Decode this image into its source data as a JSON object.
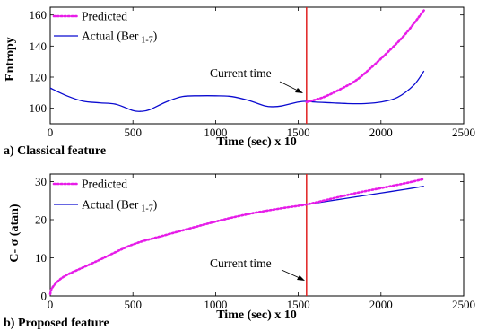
{
  "chart_data": [
    {
      "type": "line",
      "panel_label": "a) Classical feature",
      "xlabel": "Time (sec) x 10",
      "ylabel": "Entropy",
      "xlim": [
        0,
        2500
      ],
      "ylim": [
        90,
        165
      ],
      "xticks": [
        "0",
        "500",
        "1000",
        "1500",
        "2000",
        "2500"
      ],
      "yticks": [
        "100",
        "120",
        "140",
        "160"
      ],
      "grid": false,
      "legend_position": "top-left",
      "current_time": 1550,
      "annotation": "Current time",
      "series": [
        {
          "name": "Predicted",
          "style": "dotted",
          "color": "#e81ce8",
          "x": [
            1550,
            1650,
            1750,
            1850,
            1950,
            2050,
            2150,
            2260
          ],
          "y": [
            104,
            107,
            112,
            118,
            127,
            137,
            148,
            163
          ]
        },
        {
          "name": "Actual (Ber",
          "name_sub": "1-7",
          "name_suffix": ")",
          "style": "solid",
          "color": "#0a0ad0",
          "x": [
            0,
            100,
            200,
            300,
            400,
            500,
            550,
            600,
            700,
            800,
            900,
            1000,
            1100,
            1200,
            1300,
            1350,
            1400,
            1500,
            1550,
            1600,
            1700,
            1800,
            1900,
            2000,
            2100,
            2200,
            2260
          ],
          "y": [
            113,
            108,
            104.5,
            103.5,
            102.5,
            98.5,
            98,
            99,
            104,
            107.5,
            108,
            108,
            107.5,
            105,
            101.5,
            101,
            101.5,
            104,
            104.5,
            104,
            103.5,
            103,
            103,
            104,
            107,
            115,
            124
          ]
        }
      ]
    },
    {
      "type": "line",
      "panel_label": "b) Proposed feature",
      "xlabel": "Time (sec) x 10",
      "ylabel": "C- σ (atan)",
      "xlim": [
        0,
        2500
      ],
      "ylim": [
        0,
        32
      ],
      "xticks": [
        "0",
        "500",
        "1000",
        "1500",
        "2000",
        "2500"
      ],
      "yticks": [
        "0",
        "10",
        "20",
        "30"
      ],
      "grid": false,
      "legend_position": "top-left",
      "current_time": 1550,
      "annotation": "Current time",
      "series": [
        {
          "name": "Predicted",
          "style": "dotted",
          "color": "#e81ce8",
          "x": [
            0,
            10,
            50,
            100,
            200,
            300,
            500,
            700,
            1000,
            1200,
            1400,
            1550,
            1700,
            1850,
            2000,
            2150,
            2260
          ],
          "y": [
            0.5,
            2,
            4,
            5.5,
            7.5,
            9.5,
            13.5,
            16,
            19.5,
            21.5,
            23,
            24,
            25.5,
            27,
            28.3,
            29.6,
            30.7
          ]
        },
        {
          "name": "Actual  (Ber",
          "name_sub": "1-7",
          "name_suffix": ")",
          "style": "solid",
          "color": "#0a0ad0",
          "x": [
            0,
            10,
            50,
            100,
            200,
            300,
            500,
            700,
            1000,
            1200,
            1400,
            1550,
            1700,
            1850,
            2000,
            2150,
            2260
          ],
          "y": [
            0.5,
            2,
            4,
            5.5,
            7.5,
            9.5,
            13.5,
            16,
            19.5,
            21.5,
            23,
            24,
            25,
            26,
            27,
            28,
            28.8
          ]
        }
      ]
    }
  ]
}
